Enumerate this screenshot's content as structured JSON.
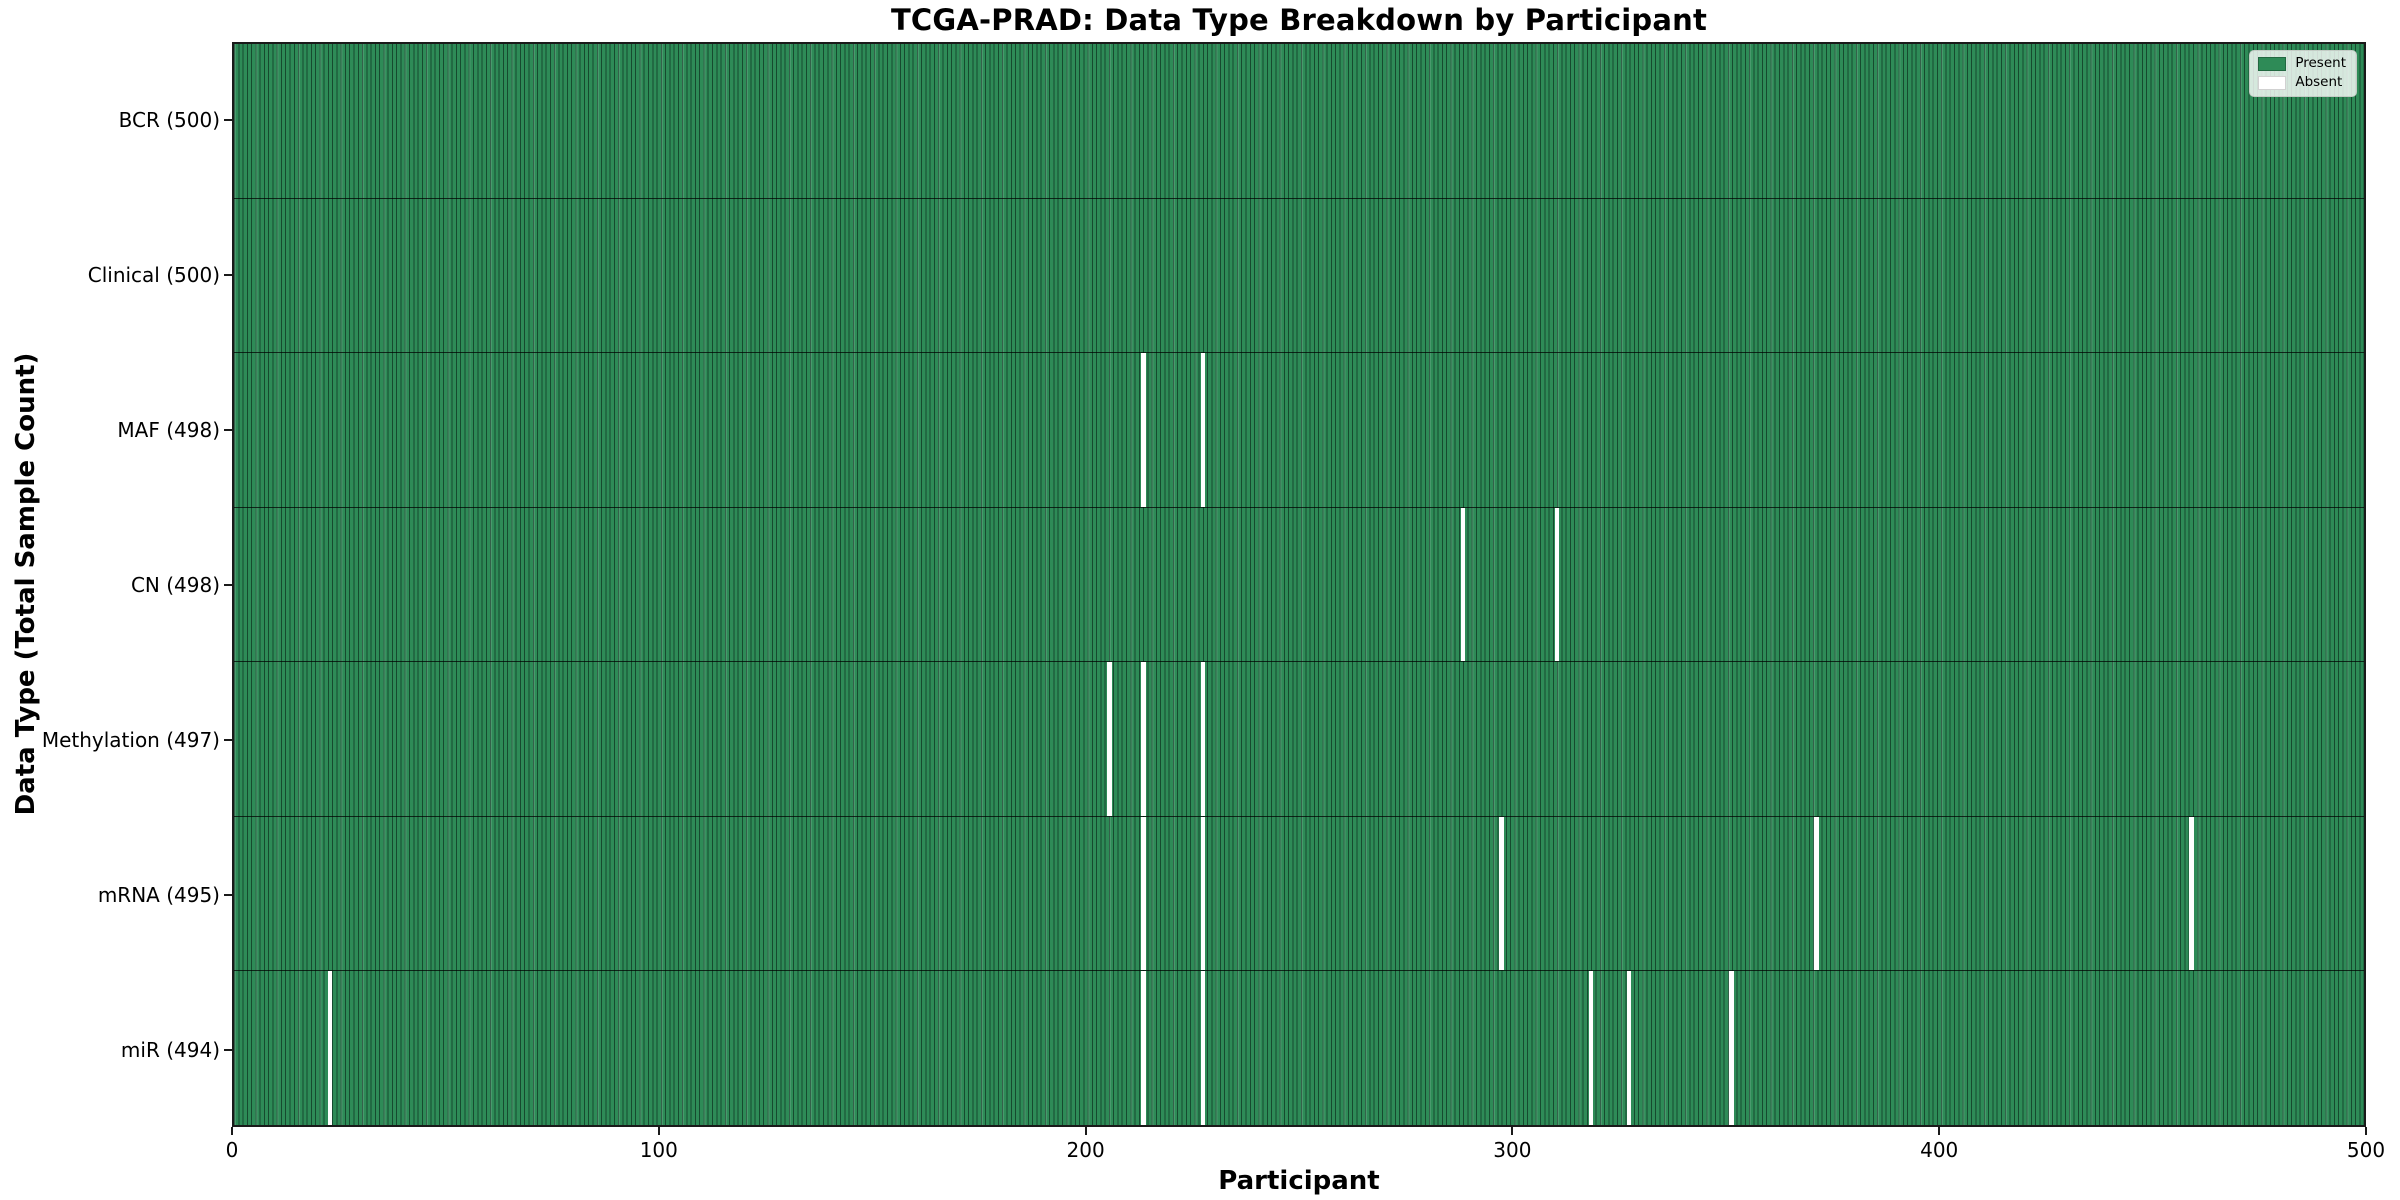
{
  "title": "TCGA-PRAD: Data Type Breakdown by Participant",
  "xlabel": "Participant",
  "ylabel": "Data Type (Total Sample Count)",
  "legend": {
    "present_label": "Present",
    "absent_label": "Absent"
  },
  "colors": {
    "present": "#2e8b57",
    "absent": "#ffffff"
  },
  "chart_data": {
    "type": "heatmap",
    "title": "TCGA-PRAD: Data Type Breakdown by Participant",
    "xlabel": "Participant",
    "ylabel": "Data Type (Total Sample Count)",
    "x_range": [
      0,
      500
    ],
    "n_participants": 500,
    "x_ticks": [
      0,
      100,
      200,
      300,
      400,
      500
    ],
    "grid": false,
    "legend_position": "upper right",
    "legend_entries": [
      "Present",
      "Absent"
    ],
    "rows": [
      {
        "name": "bcr",
        "label": "BCR (500)",
        "data_type": "BCR",
        "total": 500,
        "absent_participants": []
      },
      {
        "name": "clinical",
        "label": "Clinical (500)",
        "data_type": "Clinical",
        "total": 500,
        "absent_participants": []
      },
      {
        "name": "maf",
        "label": "MAF (498)",
        "data_type": "MAF",
        "total": 498,
        "absent_participants": [
          213,
          227
        ]
      },
      {
        "name": "cn",
        "label": "CN (498)",
        "data_type": "CN",
        "total": 498,
        "absent_participants": [
          288,
          310
        ]
      },
      {
        "name": "methylation",
        "label": "Methylation (497)",
        "data_type": "Methylation",
        "total": 497,
        "absent_participants": [
          205,
          213,
          227
        ]
      },
      {
        "name": "mrna",
        "label": "mRNA (495)",
        "data_type": "mRNA",
        "total": 495,
        "absent_participants": [
          213,
          227,
          297,
          371,
          459
        ]
      },
      {
        "name": "mir",
        "label": "miR (494)",
        "data_type": "miR",
        "total": 494,
        "absent_participants": [
          22,
          213,
          227,
          318,
          327,
          351
        ]
      }
    ]
  }
}
